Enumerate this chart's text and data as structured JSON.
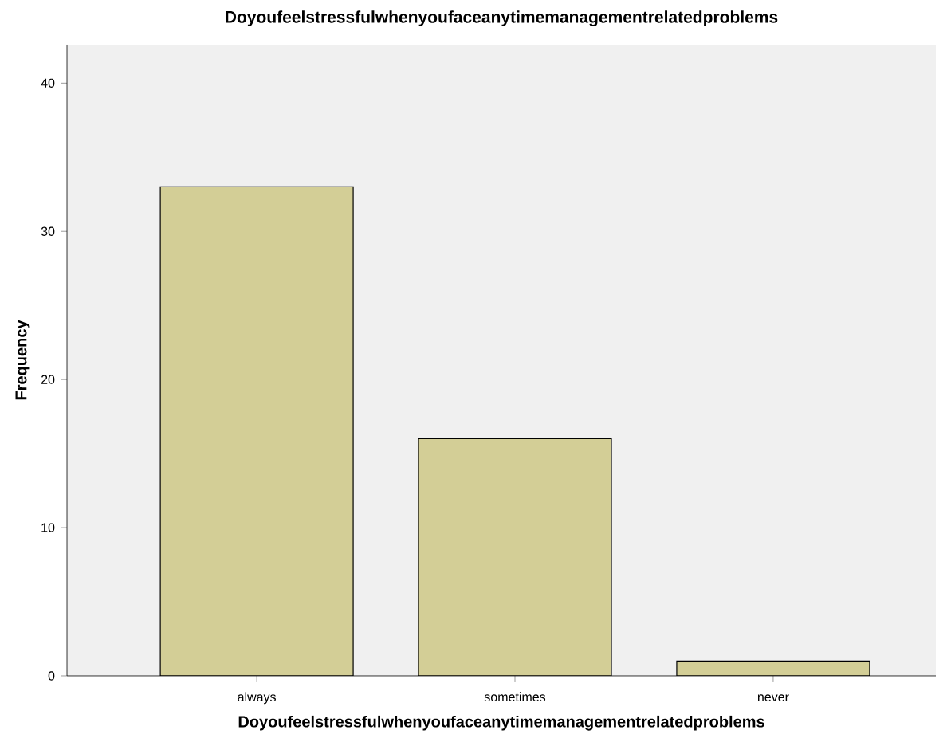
{
  "chart_data": {
    "type": "bar",
    "title": "Doyoufeelstressfulwhenyoufaceanytimemanagementrelatedproblems",
    "xlabel": "Doyoufeelstressfulwhenyoufaceanytimemanagementrelatedproblems",
    "ylabel": "Frequency",
    "categories": [
      "always",
      "sometimes",
      "never"
    ],
    "values": [
      33,
      16,
      1
    ],
    "color": "#d3ce96",
    "ylim": [
      0,
      42.6
    ],
    "yticks": [
      0,
      10,
      20,
      30,
      40
    ],
    "grid": false
  }
}
